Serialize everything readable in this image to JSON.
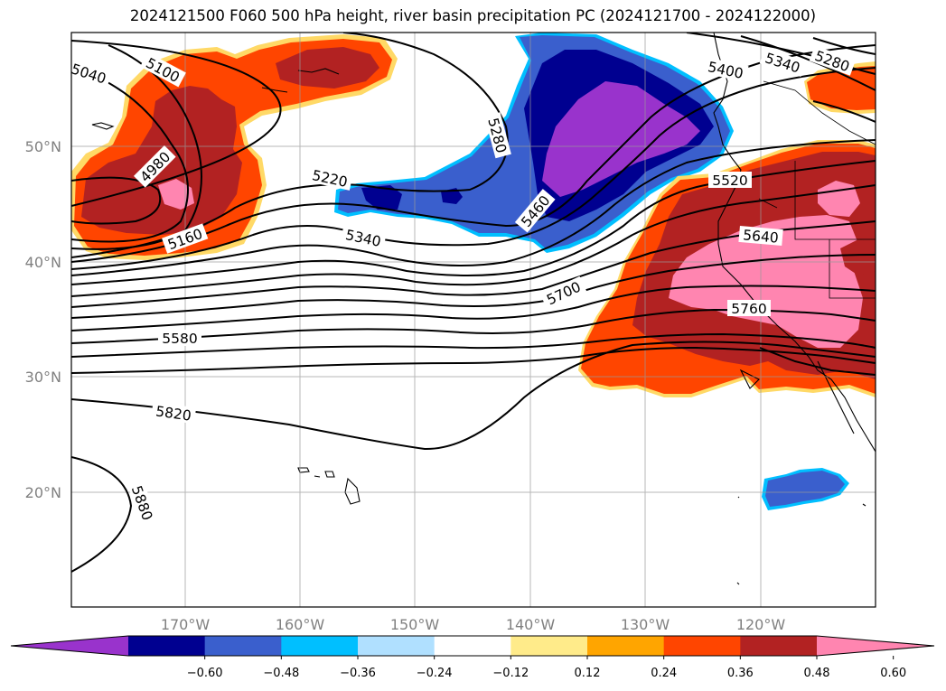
{
  "title": "2024121500 F060 500 hPa height, river basin precipitation PC (2024121700 - 2024122000)",
  "lat_labels": [
    "50°N",
    "40°N",
    "30°N",
    "20°N"
  ],
  "lon_labels": [
    "170°W",
    "160°W",
    "150°W",
    "140°W",
    "130°W",
    "120°W"
  ],
  "colorbar": {
    "ticks": [
      "−0.60",
      "−0.48",
      "−0.36",
      "−0.24",
      "−0.12",
      "0.12",
      "0.24",
      "0.36",
      "0.48",
      "0.60"
    ],
    "colors": [
      "#9933cc",
      "#000090",
      "#3a5fcd",
      "#00bfff",
      "#b0e0ff",
      "#ffffff",
      "#ffeb8a",
      "#ffa500",
      "#ff4500",
      "#b22222",
      "#ff85b0"
    ]
  },
  "contour_labels": [
    "5040",
    "5100",
    "4980",
    "5160",
    "5220",
    "5280",
    "5340",
    "5400",
    "5460",
    "5520",
    "5580",
    "5640",
    "5700",
    "5760",
    "5820",
    "5880",
    "5280",
    "5340"
  ]
}
